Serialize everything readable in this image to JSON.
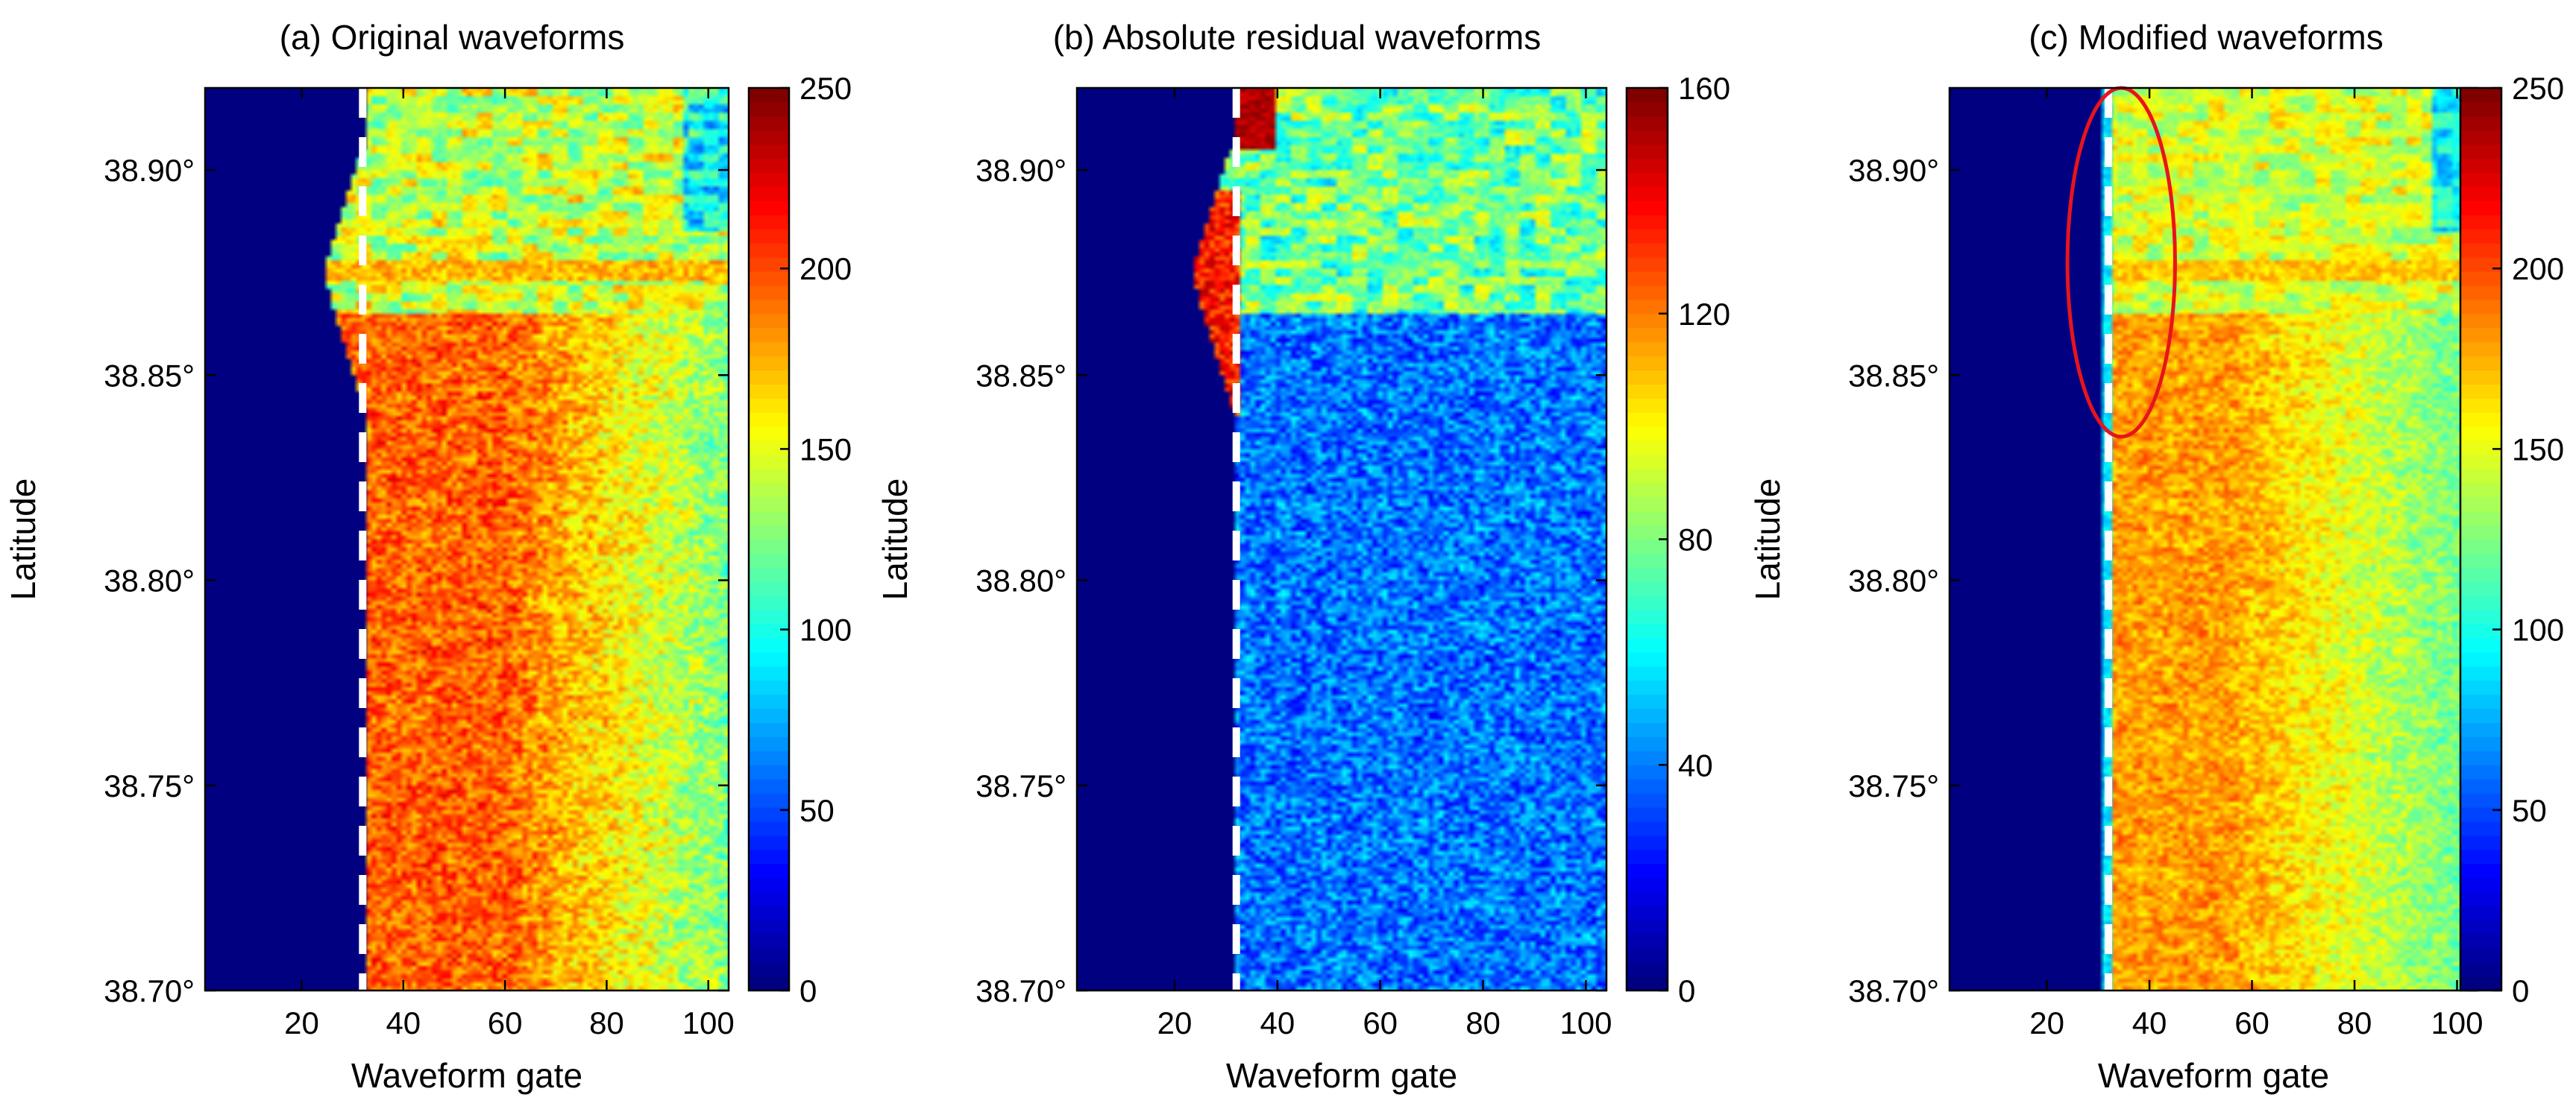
{
  "chart_data": [
    {
      "type": "heatmap",
      "title": "(a) Original waveforms",
      "xlabel": "Waveform gate",
      "ylabel": "Latitude",
      "xlim": [
        1,
        104
      ],
      "ylim": [
        38.7,
        38.92
      ],
      "x_ticks": [
        "20",
        "40",
        "60",
        "80",
        "100"
      ],
      "y_ticks": [
        "38.70°",
        "38.75°",
        "38.80°",
        "38.85°",
        "38.90°"
      ],
      "colorbar": {
        "range": [
          0,
          250
        ],
        "ticks": [
          "0",
          "50",
          "100",
          "150",
          "200",
          "250"
        ],
        "colormap": "jet"
      },
      "dashed_line_gate": 32,
      "description_values": {
        "background_gates_1_to_32": 0,
        "mean_body_value": 180
      }
    },
    {
      "type": "heatmap",
      "title": "(b) Absolute residual waveforms",
      "xlabel": "Waveform gate",
      "ylabel": "Latitude",
      "xlim": [
        1,
        104
      ],
      "ylim": [
        38.7,
        38.92
      ],
      "x_ticks": [
        "20",
        "40",
        "60",
        "80",
        "100"
      ],
      "y_ticks": [
        "38.70°",
        "38.75°",
        "38.80°",
        "38.85°",
        "38.90°"
      ],
      "colorbar": {
        "range": [
          0,
          160
        ],
        "ticks": [
          "0",
          "40",
          "80",
          "120",
          "160"
        ],
        "colormap": "jet"
      },
      "dashed_line_gate": 32,
      "description_values": {
        "background_gates_1_to_32": 0,
        "mean_body_value": 15
      }
    },
    {
      "type": "heatmap",
      "title": "(c) Modified waveforms",
      "xlabel": "Waveform gate",
      "ylabel": "Latitude",
      "xlim": [
        1,
        104
      ],
      "ylim": [
        38.7,
        38.92
      ],
      "x_ticks": [
        "20",
        "40",
        "60",
        "80",
        "100"
      ],
      "y_ticks": [
        "38.70°",
        "38.75°",
        "38.80°",
        "38.85°",
        "38.90°"
      ],
      "colorbar": {
        "range": [
          0,
          250
        ],
        "ticks": [
          "0",
          "50",
          "100",
          "150",
          "200",
          "250"
        ],
        "colormap": "jet"
      },
      "dashed_line_gate": 32,
      "highlight_ellipse": {
        "color": "#e8141c",
        "gate_range": [
          24,
          45
        ],
        "lat_range": [
          38.835,
          38.92
        ]
      },
      "description_values": {
        "background_gates_1_to_32": 0,
        "mean_body_value": 160
      }
    }
  ]
}
